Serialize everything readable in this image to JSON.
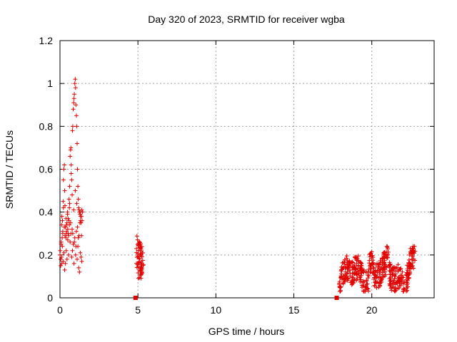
{
  "chart_data": {
    "type": "scatter",
    "title": "Day 320 of 2023, SRMTID for receiver wgba",
    "xlabel": "GPS time / hours",
    "ylabel": "SRMTID / TECUs",
    "xlim": [
      0,
      24
    ],
    "ylim": [
      0,
      1.2
    ],
    "xticks": [
      0,
      5,
      10,
      15,
      20
    ],
    "yticks": [
      0,
      0.2,
      0.4,
      0.6,
      0.8,
      1,
      1.2
    ],
    "xtick_labels": [
      "0",
      "5",
      "10",
      "15",
      "20"
    ],
    "ytick_labels": [
      "0",
      "0.2",
      "0.4",
      "0.6",
      "0.8",
      "1",
      "1.2"
    ],
    "grid": true,
    "marker": "+",
    "color": "#e00000",
    "series": [
      {
        "name": "SRMTID",
        "x": [
          0.0,
          0.02,
          0.05,
          0.08,
          0.1,
          0.12,
          0.14,
          0.16,
          0.18,
          0.2,
          0.22,
          0.25,
          0.28,
          0.3,
          0.32,
          0.35,
          0.38,
          0.4,
          0.42,
          0.45,
          0.48,
          0.5,
          0.52,
          0.55,
          0.58,
          0.6,
          0.62,
          0.65,
          0.68,
          0.7,
          0.72,
          0.75,
          0.78,
          0.8,
          0.82,
          0.85,
          0.88,
          0.9,
          0.92,
          0.95,
          0.98,
          1.0,
          1.02,
          1.05,
          1.08,
          1.1,
          1.12,
          1.15,
          1.18,
          1.2,
          1.22,
          1.25,
          1.28,
          1.3,
          1.32,
          1.35,
          1.38,
          1.4,
          1.42,
          1.45,
          0.05,
          0.1,
          0.15,
          0.2,
          0.25,
          0.3,
          0.35,
          0.4,
          0.45,
          0.5,
          0.55,
          0.6,
          0.65,
          0.7,
          0.75,
          0.8,
          0.85,
          0.9,
          0.95,
          1.0,
          1.05,
          1.1,
          1.15,
          1.2,
          1.25,
          1.3,
          1.35,
          1.4,
          0.12,
          0.22,
          0.32,
          0.42,
          0.52,
          0.62,
          0.72,
          0.82,
          0.92,
          1.02,
          1.12,
          1.22,
          1.32,
          0.08,
          0.18,
          0.28,
          0.38,
          0.48,
          0.58,
          0.68,
          0.78,
          0.88,
          0.98,
          1.08,
          1.18,
          1.28,
          1.38
        ],
        "y": [
          0.2,
          0.22,
          0.18,
          0.25,
          0.34,
          0.16,
          0.28,
          0.36,
          0.3,
          0.45,
          0.55,
          0.6,
          0.62,
          0.5,
          0.43,
          0.33,
          0.28,
          0.3,
          0.31,
          0.35,
          0.4,
          0.32,
          0.3,
          0.29,
          0.36,
          0.42,
          0.52,
          0.66,
          0.69,
          0.7,
          0.62,
          0.55,
          0.48,
          0.78,
          0.8,
          0.88,
          0.91,
          0.93,
          0.95,
          1.0,
          1.02,
          0.98,
          0.9,
          0.85,
          0.8,
          0.72,
          0.6,
          0.52,
          0.46,
          0.42,
          0.41,
          0.4,
          0.39,
          0.4,
          0.38,
          0.35,
          0.38,
          0.41,
          0.36,
          0.4,
          0.15,
          0.19,
          0.24,
          0.17,
          0.21,
          0.13,
          0.16,
          0.22,
          0.18,
          0.27,
          0.2,
          0.34,
          0.26,
          0.3,
          0.19,
          0.22,
          0.25,
          0.16,
          0.28,
          0.2,
          0.31,
          0.18,
          0.24,
          0.14,
          0.12,
          0.21,
          0.19,
          0.17,
          0.38,
          0.42,
          0.29,
          0.34,
          0.37,
          0.44,
          0.58,
          0.3,
          0.26,
          0.24,
          0.33,
          0.29,
          0.36,
          0.26,
          0.31,
          0.33,
          0.37,
          0.39,
          0.46,
          0.35,
          0.32,
          0.41,
          0.5,
          0.44,
          0.28,
          0.35,
          0.29
        ],
        "_note": "cluster 1 (0-1.5 h)"
      }
    ],
    "clusters": [
      {
        "x_range": [
          0,
          1.5
        ],
        "y_range": [
          0.1,
          1.02
        ]
      },
      {
        "x_range": [
          4.85,
          5.4
        ],
        "y_range": [
          0.08,
          0.31
        ]
      },
      {
        "x_range": [
          17.9,
          22.8
        ],
        "y_range": [
          0.03,
          0.24
        ]
      }
    ],
    "zero_markers_x": [
      4.85,
      17.75
    ]
  }
}
